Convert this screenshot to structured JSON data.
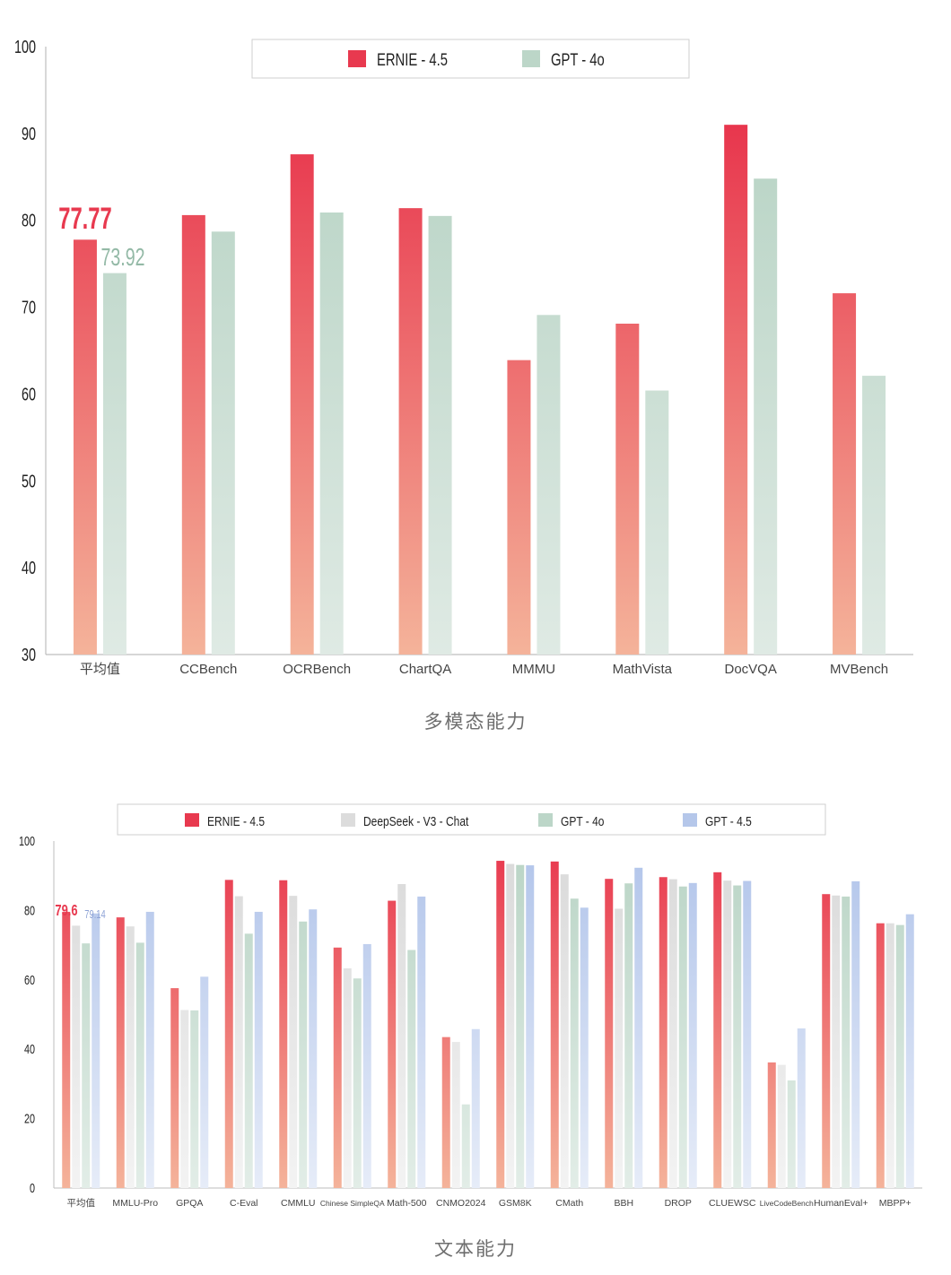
{
  "colors": {
    "ernie": "#e8394f",
    "ernie_light": "#f4b299",
    "deepseek": "#dcdcdc",
    "gpt4o": "#bcd6c8",
    "gpt45": "#b5c7ea",
    "label_gpt4o": "#93b9a6",
    "label_gpt45": "#8ea3d6"
  },
  "chart_data": [
    {
      "type": "bar",
      "caption": "多模态能力",
      "categories": [
        "平均值",
        "CCBench",
        "OCRBench",
        "ChartQA",
        "MMMU",
        "MathVista",
        "DocVQA",
        "MVBench"
      ],
      "series": [
        {
          "name": "ERNIE - 4.5",
          "values": [
            77.77,
            80.6,
            87.6,
            81.4,
            63.9,
            68.1,
            91.0,
            71.6
          ]
        },
        {
          "name": "GPT - 4o",
          "values": [
            73.92,
            78.7,
            80.9,
            80.5,
            69.1,
            60.4,
            84.8,
            62.1
          ]
        }
      ],
      "annotations": [
        "77.77",
        "73.92"
      ],
      "yticks": [
        "100",
        "90",
        "80",
        "70",
        "60",
        "50",
        "40",
        "30"
      ],
      "ylim": [
        30,
        100
      ],
      "legend": "top-center"
    },
    {
      "type": "bar",
      "caption": "文本能力",
      "categories": [
        "平均值",
        "MMLU-Pro",
        "GPQA",
        "C-Eval",
        "CMMLU",
        "Chinese SimpleQA",
        "Math-500",
        "CNMO2024",
        "GSM8K",
        "CMath",
        "BBH",
        "DROP",
        "CLUEWSC",
        "LiveCodeBench",
        "HumanEval+",
        "MBPP+"
      ],
      "series": [
        {
          "name": "ERNIE - 4.5",
          "values": [
            79.6,
            78.0,
            57.6,
            88.8,
            88.7,
            69.3,
            82.8,
            43.5,
            94.3,
            94.1,
            89.1,
            89.6,
            91.0,
            36.2,
            84.7,
            76.3
          ]
        },
        {
          "name": "DeepSeek - V3 - Chat",
          "values": [
            75.6,
            75.4,
            51.3,
            84.1,
            84.2,
            63.3,
            87.6,
            42.1,
            93.4,
            90.4,
            80.5,
            89.0,
            88.6,
            35.5,
            84.3,
            76.3
          ]
        },
        {
          "name": "GPT - 4o",
          "values": [
            70.5,
            70.7,
            51.2,
            73.3,
            76.8,
            60.4,
            68.6,
            24.1,
            93.1,
            83.4,
            87.8,
            86.9,
            87.2,
            31.0,
            84.0,
            75.8
          ]
        },
        {
          "name": "GPT - 4.5",
          "values": [
            79.14,
            79.6,
            60.9,
            79.6,
            80.3,
            70.3,
            84.0,
            45.8,
            93.0,
            80.8,
            92.3,
            87.9,
            88.5,
            46.0,
            88.4,
            78.9
          ]
        }
      ],
      "annotations": [
        "79.6",
        "79.14"
      ],
      "yticks": [
        "100",
        "80",
        "60",
        "40",
        "20",
        "0"
      ],
      "ylim": [
        0,
        100
      ],
      "legend": "top-center"
    }
  ]
}
